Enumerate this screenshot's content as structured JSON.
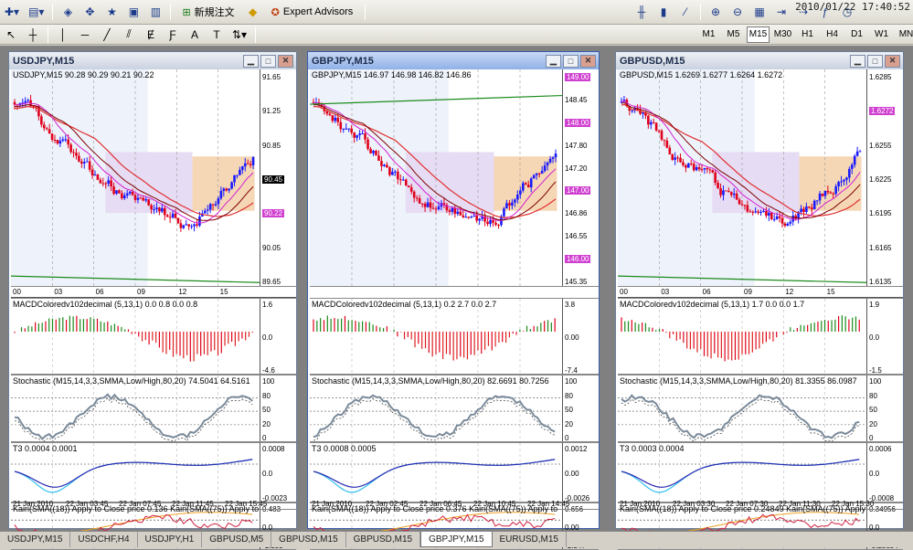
{
  "clock": "2010/01/22 17:40:52",
  "toolbar1": {
    "new_order_label": "新規注文",
    "expert_advisors_label": "Expert Advisors"
  },
  "timeframes": [
    "M1",
    "M5",
    "M15",
    "M30",
    "H1",
    "H4",
    "D1",
    "W1",
    "MN"
  ],
  "active_timeframe": "M15",
  "windows": [
    {
      "title": "USDJPY,M15",
      "main_label": "USDJPY,M15  90.28 90.29 90.21 90.22",
      "price_levels": [
        "91.65",
        "91.25",
        "90.85",
        "90.45",
        "90.22",
        "90.05",
        "89.65"
      ],
      "highlight_prices": [
        "90.45",
        "90.22"
      ],
      "upper_xlabels": [
        "00",
        "03",
        "06",
        "09",
        "12",
        "15"
      ],
      "macd_label": "MACDColoredv102decimal (5,13,1) 0.0 0.8 0.0 0.8",
      "macd_levels": [
        "1.6",
        "0.0",
        "-4.6"
      ],
      "stoch_label": "Stochastic (M15,14,3,3,SMMA,Low/High,80,20) 74.5041 64.5161",
      "stoch_levels": [
        "100",
        "80",
        "50",
        "20",
        "0"
      ],
      "t3_label": "T3 0.0004 0.0001",
      "t3_levels": [
        "0.0008",
        "0.0",
        "-0.0023"
      ],
      "kairi_label": "Kairi(SMA((18)) Apply to Close price 0.136  Kairi(SMA((75)) Apply to",
      "kairi_levels": [
        "0.483",
        "0.0",
        "-1.359"
      ],
      "xlabels": [
        "21 Jan 2010",
        "22 Jan 03:45",
        "22 Jan 07:45",
        "22 Jan 11:45",
        "22 Jan 15:45"
      ]
    },
    {
      "title": "GBPJPY,M15",
      "main_label": "GBPJPY,M15  146.97 146.98 146.82 146.86",
      "price_levels": [
        "149.00",
        "148.45",
        "148.00",
        "147.80",
        "147.20",
        "147.00",
        "146.86",
        "146.55",
        "146.00",
        "145.35"
      ],
      "highlight_prices": [
        "149.00",
        "148.00",
        "147.00",
        "146.00"
      ],
      "macd_label": "MACDColoredv102decimal (5,13,1) 0.2 2.7 0.0 2.7",
      "macd_levels": [
        "3.8",
        "0.00",
        "-7.4"
      ],
      "stoch_label": "Stochastic (M15,14,3,3,SMMA,Low/High,80,20) 82.6691 80.7256",
      "stoch_levels": [
        "100",
        "80",
        "50",
        "20",
        "0"
      ],
      "t3_label": "T3 0.0008 0.0005",
      "t3_levels": [
        "0.0012",
        "0.00",
        "-0.0026"
      ],
      "kairi_label": "Kairi(SMA((18)) Apply to Close price 0.376  Kairi(SMA((75)) Apply to",
      "kairi_levels": [
        "0.656",
        "0.00",
        "-1.347"
      ],
      "xlabels": [
        "21 Jan 2010",
        "22 Jan 02:45",
        "22 Jan 06:45",
        "22 Jan 10:45",
        "22 Jan 14:45"
      ]
    },
    {
      "title": "GBPUSD,M15",
      "main_label": "GBPUSD,M15  1.6269 1.6277 1.6264 1.6272",
      "price_levels": [
        "1.6285",
        "1.6272",
        "1.6255",
        "1.6225",
        "1.6195",
        "1.6165",
        "1.6135"
      ],
      "highlight_prices": [
        "1.6272"
      ],
      "upper_xlabels": [
        "00",
        "03",
        "06",
        "09",
        "12",
        "15"
      ],
      "macd_label": "MACDColoredv102decimal (5,13,1) 1.7 0.0 0.0 1.7",
      "macd_levels": [
        "1.9",
        "0.0",
        "-1.5"
      ],
      "stoch_label": "Stochastic (M15,14,3,3,SMMA,Low/High,80,20) 81.3355 86.0987",
      "stoch_levels": [
        "100",
        "80",
        "50",
        "20",
        "0"
      ],
      "t3_label": "T3 0.0003 0.0004",
      "t3_levels": [
        "0.0006",
        "0.0",
        "-0.0008"
      ],
      "kairi_label": "Kairi(SMA((18)) Apply to Close price 0.24849  Kairi(SMA((75)) Apply to",
      "kairi_levels": [
        "0.34956",
        "0.0",
        "-0.25654"
      ],
      "xlabels": [
        "21 Jan 2010",
        "22 Jan 03:30",
        "22 Jan 07:30",
        "22 Jan 11:30",
        "22 Jan 15:30"
      ]
    }
  ],
  "tabs": [
    "USDJPY,M15",
    "USDCHF,H4",
    "USDJPY,H1",
    "GBPUSD,M5",
    "GBPUSD,M15",
    "GBPUSD,M15",
    "GBPJPY,M15",
    "EURUSD,M15"
  ],
  "active_tab": 6,
  "colors": {
    "bull": "#1a1aff",
    "bear": "#e0001b",
    "ma_red": "#e03030",
    "ma_magenta": "#d020d0",
    "ma_green": "#1a8a1a",
    "stoch_gray": "#7a8a9a",
    "t3_blue": "#2a2ab0",
    "t3_cyan": "#30c0f0",
    "kairi_red": "#d02040",
    "kairi_orange": "#f0a020",
    "highlight_label": "#d040d0"
  }
}
